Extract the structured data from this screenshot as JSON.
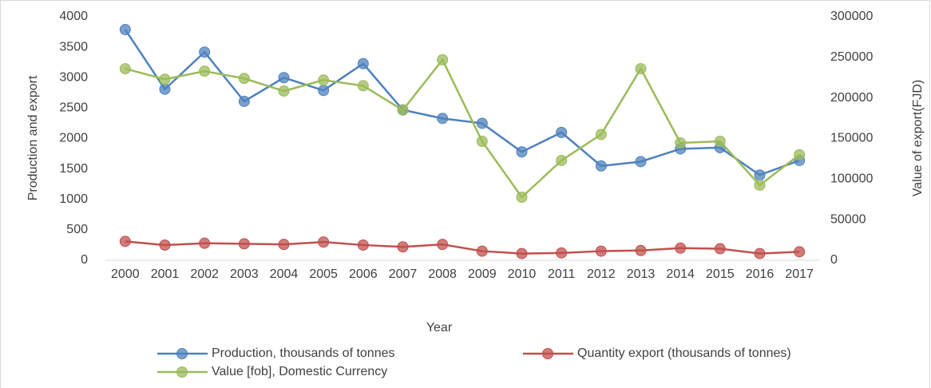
{
  "chart_data": {
    "type": "line",
    "x_label": "Year",
    "y_label": "Production and export",
    "y2_label": "Value of export(FJD)",
    "categories": [
      "2000",
      "2001",
      "2002",
      "2003",
      "2004",
      "2005",
      "2006",
      "2007",
      "2008",
      "2009",
      "2010",
      "2011",
      "2012",
      "2013",
      "2014",
      "2015",
      "2016",
      "2017"
    ],
    "series": [
      {
        "name": "Production, thousands of tonnes",
        "color": "#4f81bd",
        "values": [
          3790,
          2810,
          3420,
          2610,
          3000,
          2790,
          3230,
          2470,
          2330,
          2250,
          1780,
          2100,
          1550,
          1620,
          1830,
          1850,
          1400,
          1640
        ]
      },
      {
        "name": "Quantity export (thousands of tonnes)",
        "color": "#c0504d",
        "values": [
          310,
          250,
          280,
          270,
          260,
          300,
          250,
          220,
          260,
          150,
          110,
          120,
          150,
          160,
          200,
          190,
          110,
          140
        ]
      },
      {
        "name": "Value [fob], Domestic Currency",
        "color": "#9bbb59",
        "axis": "y2",
        "values": [
          236000,
          223000,
          233000,
          224000,
          208500,
          222000,
          215000,
          185000,
          247000,
          146500,
          77700,
          123000,
          155000,
          236000,
          144600,
          146500,
          92500,
          130000
        ]
      }
    ],
    "ylim": [
      0,
      4000
    ],
    "yticks": [
      0,
      500,
      1000,
      1500,
      2000,
      2500,
      3000,
      3500,
      4000
    ],
    "y2lim": [
      0,
      300000
    ],
    "y2ticks": [
      0,
      50000,
      100000,
      150000,
      200000,
      250000,
      300000
    ],
    "grid": false,
    "legend": "bottom"
  }
}
